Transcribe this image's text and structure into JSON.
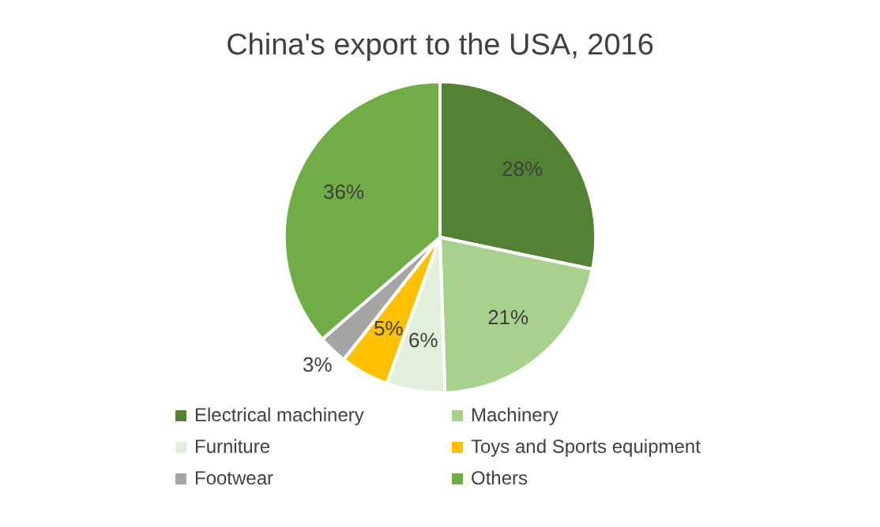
{
  "chart_data": {
    "type": "pie",
    "title": "China's export to the USA, 2016",
    "categories": [
      "Electrical machinery",
      "Machinery",
      "Furniture",
      "Toys and Sports equipment",
      "Footwear",
      "Others"
    ],
    "values": [
      28,
      21,
      6,
      5,
      3,
      36
    ],
    "colors": [
      "#548235",
      "#a9d18e",
      "#e2efda",
      "#ffc000",
      "#a5a5a5",
      "#70ad47"
    ],
    "value_labels": [
      "28%",
      "21%",
      "6%",
      "5%",
      "3%",
      "36%"
    ],
    "legend": "bottom"
  }
}
